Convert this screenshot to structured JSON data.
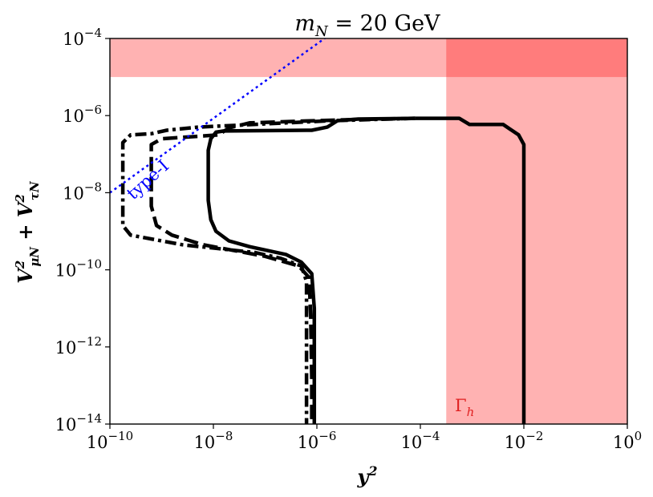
{
  "chart_data": {
    "type": "line",
    "title": "m_N = 20 GeV",
    "xlabel": "y^2",
    "ylabel": "V^2_{μN} + V^2_{τN}",
    "xscale": "log",
    "yscale": "log",
    "xlim_exp": [
      -10,
      0
    ],
    "ylim_exp": [
      -14,
      -4
    ],
    "x_ticks": [
      {
        "base": "10",
        "exp": "−10",
        "value": -10
      },
      {
        "base": "10",
        "exp": "−8",
        "value": -8
      },
      {
        "base": "10",
        "exp": "−6",
        "value": -6
      },
      {
        "base": "10",
        "exp": "−4",
        "value": -4
      },
      {
        "base": "10",
        "exp": "−2",
        "value": -2
      },
      {
        "base": "10",
        "exp": "0",
        "value": 0
      }
    ],
    "y_ticks": [
      {
        "base": "10",
        "exp": "−4",
        "value": -4
      },
      {
        "base": "10",
        "exp": "−6",
        "value": -6
      },
      {
        "base": "10",
        "exp": "−8",
        "value": -8
      },
      {
        "base": "10",
        "exp": "−10",
        "value": -10
      },
      {
        "base": "10",
        "exp": "−12",
        "value": -12
      },
      {
        "base": "10",
        "exp": "−14",
        "value": -14
      }
    ],
    "regions": [
      {
        "id": "horizontal-band",
        "x_exp": [
          -10,
          0
        ],
        "y_exp": [
          -5,
          -4
        ],
        "color": "#ff0000",
        "opacity": 0.3
      },
      {
        "id": "gamma-h-band",
        "x_exp": [
          -3.5,
          0
        ],
        "y_exp": [
          -14,
          -4
        ],
        "color": "#ff0000",
        "opacity": 0.3
      }
    ],
    "series": [
      {
        "style": "solid",
        "color": "#000000",
        "log_points": [
          [
            -4.1,
            -6.07
          ],
          [
            -5.2,
            -6.09
          ],
          [
            -5.6,
            -6.13
          ],
          [
            -5.8,
            -6.3
          ],
          [
            -6.1,
            -6.38
          ],
          [
            -7.8,
            -6.4
          ],
          [
            -7.95,
            -6.43
          ],
          [
            -8.05,
            -6.6
          ],
          [
            -8.1,
            -6.9
          ],
          [
            -8.1,
            -7.3
          ],
          [
            -8.1,
            -8.2
          ],
          [
            -8.05,
            -8.7
          ],
          [
            -7.95,
            -9.0
          ],
          [
            -7.7,
            -9.25
          ],
          [
            -7.3,
            -9.4
          ],
          [
            -6.6,
            -9.6
          ],
          [
            -6.3,
            -9.8
          ],
          [
            -6.1,
            -10.1
          ],
          [
            -6.05,
            -11.0
          ],
          [
            -6.05,
            -12.0
          ],
          [
            -6.05,
            -13.2
          ],
          [
            -6.05,
            -14.0
          ]
        ]
      },
      {
        "style": "solid",
        "color": "#000000",
        "log_points": [
          [
            -4.1,
            -6.07
          ],
          [
            -3.25,
            -6.07
          ],
          [
            -3.05,
            -6.23
          ],
          [
            -2.4,
            -6.23
          ],
          [
            -2.1,
            -6.5
          ],
          [
            -2.0,
            -6.75
          ],
          [
            -2.0,
            -9.5
          ],
          [
            -2.0,
            -14.0
          ]
        ]
      },
      {
        "style": "dashed",
        "color": "#000000",
        "log_points": [
          [
            -4.1,
            -6.07
          ],
          [
            -5.2,
            -6.1
          ],
          [
            -6.2,
            -6.14
          ],
          [
            -7.3,
            -6.19
          ],
          [
            -7.7,
            -6.32
          ],
          [
            -7.9,
            -6.5
          ],
          [
            -9.0,
            -6.6
          ],
          [
            -9.2,
            -6.75
          ],
          [
            -9.2,
            -7.2
          ],
          [
            -9.2,
            -8.35
          ],
          [
            -9.1,
            -8.85
          ],
          [
            -8.8,
            -9.1
          ],
          [
            -8.2,
            -9.35
          ],
          [
            -7.0,
            -9.65
          ],
          [
            -6.35,
            -9.9
          ],
          [
            -6.15,
            -10.2
          ],
          [
            -6.12,
            -11.2
          ],
          [
            -6.1,
            -12.8
          ],
          [
            -6.1,
            -14.0
          ]
        ]
      },
      {
        "style": "dashdot",
        "color": "#000000",
        "log_points": [
          [
            -4.1,
            -6.07
          ],
          [
            -5.7,
            -6.13
          ],
          [
            -8.3,
            -6.3
          ],
          [
            -8.9,
            -6.38
          ],
          [
            -9.2,
            -6.47
          ],
          [
            -9.6,
            -6.5
          ],
          [
            -9.75,
            -6.7
          ],
          [
            -9.75,
            -7.3
          ],
          [
            -9.75,
            -8.85
          ],
          [
            -9.6,
            -9.1
          ],
          [
            -8.6,
            -9.35
          ],
          [
            -7.2,
            -9.55
          ],
          [
            -6.7,
            -9.7
          ],
          [
            -6.3,
            -9.9
          ],
          [
            -6.2,
            -10.3
          ],
          [
            -6.2,
            -11.5
          ],
          [
            -6.2,
            -14.0
          ]
        ]
      },
      {
        "style": "dotted",
        "color": "#0000ff",
        "log_points": [
          [
            -10,
            -8.0
          ],
          [
            -5.8,
            -3.95
          ]
        ]
      }
    ],
    "annotations": [
      {
        "id": "type-I",
        "text": "type-I",
        "color": "#0000ff"
      },
      {
        "id": "gamma-h",
        "text": "Γ",
        "sub": "h",
        "color": "#e02020"
      }
    ]
  }
}
